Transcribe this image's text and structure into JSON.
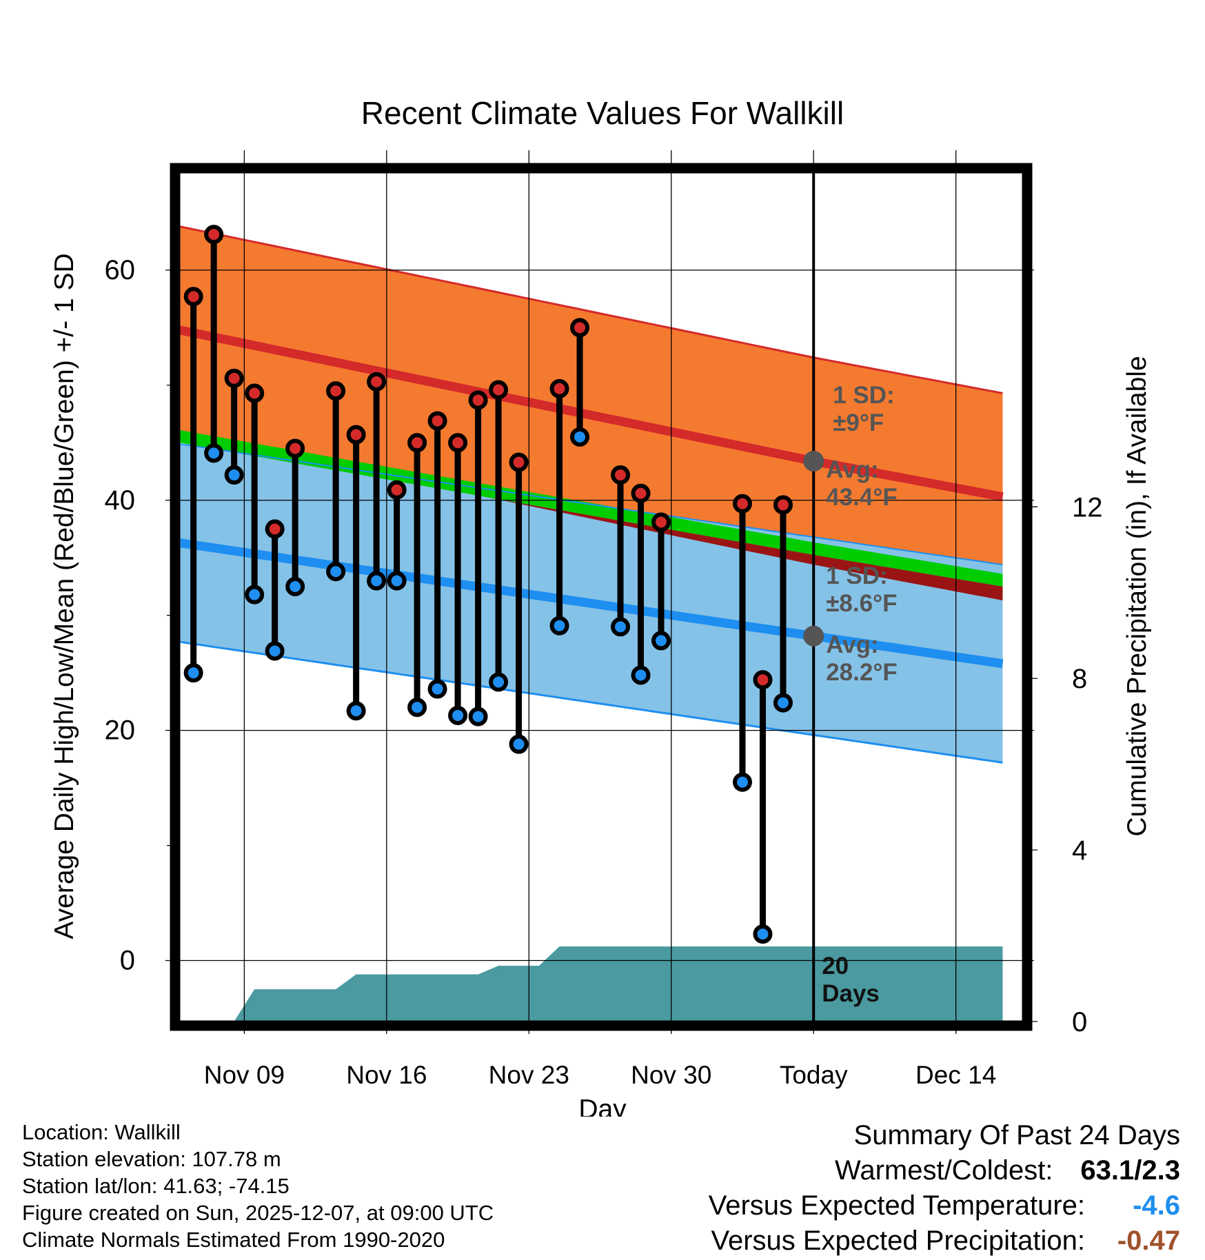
{
  "title": "Recent Climate Values For Wallkill",
  "colors": {
    "high_band": "#f47a30",
    "high_line": "#d42a2a",
    "low_band": "#85c2e7",
    "low_line": "#1e8ef0",
    "mean_band": "#00cc00",
    "mean_dark": "#9b1414",
    "precip": "#4a9aa0",
    "high_dot": "#d42a2a",
    "low_dot": "#1e8ef0",
    "annot": "#555555",
    "temp_anomaly": "#1e8ef0",
    "precip_anomaly": "#a0522d"
  },
  "chart_data": {
    "type": "range-dot",
    "title": "Recent Climate Values For Wallkill",
    "xlabel": "Day",
    "ylabel_left": "Average Daily High/Low/Mean (Red/Blue/Green) +/- 1 SD",
    "ylabel_right": "Cumulative Precipitation (in), If Available",
    "x_start": "Nov 06",
    "x_range_days": [
      0,
      41.5
    ],
    "x_ticks": [
      {
        "day": 3.2,
        "label": "Nov 09"
      },
      {
        "day": 10.2,
        "label": "Nov 16"
      },
      {
        "day": 17.2,
        "label": "Nov 23"
      },
      {
        "day": 24.2,
        "label": "Nov 30"
      },
      {
        "day": 31.2,
        "label": "Today"
      },
      {
        "day": 38.2,
        "label": "Dec 14"
      }
    ],
    "ylim": [
      -5.3,
      68.5
    ],
    "y_ticks": [
      0,
      20,
      40,
      60
    ],
    "y2lim": [
      0,
      19.8
    ],
    "y2_ticks": [
      0,
      4,
      8,
      12
    ],
    "today_day": 31.2,
    "normals": {
      "days": [
        0,
        31.2,
        40.5
      ],
      "high_avg": [
        54.8,
        43.4,
        40.3
      ],
      "high_sd": 9.0,
      "low_avg": [
        36.3,
        28.2,
        25.8
      ],
      "low_sd": 8.6
    },
    "observations": [
      {
        "day": 0.7,
        "high": 57.7,
        "low": 25.0
      },
      {
        "day": 1.7,
        "high": 63.1,
        "low": 44.1
      },
      {
        "day": 2.7,
        "high": 50.6,
        "low": 42.2
      },
      {
        "day": 3.7,
        "high": 49.3,
        "low": 31.8
      },
      {
        "day": 4.7,
        "high": 37.5,
        "low": 26.9
      },
      {
        "day": 5.7,
        "high": 44.5,
        "low": 32.5
      },
      {
        "day": 7.7,
        "high": 49.5,
        "low": 33.8
      },
      {
        "day": 8.7,
        "high": 45.7,
        "low": 21.7
      },
      {
        "day": 9.7,
        "high": 50.3,
        "low": 33.0
      },
      {
        "day": 10.7,
        "high": 40.9,
        "low": 33.0
      },
      {
        "day": 11.7,
        "high": 45.0,
        "low": 22.0
      },
      {
        "day": 12.7,
        "high": 46.9,
        "low": 23.6
      },
      {
        "day": 13.7,
        "high": 45.0,
        "low": 21.3
      },
      {
        "day": 14.7,
        "high": 48.7,
        "low": 21.2
      },
      {
        "day": 15.7,
        "high": 49.6,
        "low": 24.2
      },
      {
        "day": 16.7,
        "high": 43.3,
        "low": 18.8
      },
      {
        "day": 18.7,
        "high": 49.7,
        "low": 29.1
      },
      {
        "day": 19.7,
        "high": 55.0,
        "low": 45.5
      },
      {
        "day": 21.7,
        "high": 42.2,
        "low": 29.0
      },
      {
        "day": 22.7,
        "high": 40.6,
        "low": 24.8
      },
      {
        "day": 23.7,
        "high": 38.1,
        "low": 27.8
      },
      {
        "day": 27.7,
        "high": 39.7,
        "low": 15.5
      },
      {
        "day": 28.7,
        "high": 24.4,
        "low": 2.3
      },
      {
        "day": 29.7,
        "high": 39.6,
        "low": 22.4
      }
    ],
    "precip_cumulative": [
      {
        "day": 0,
        "value": 0.0
      },
      {
        "day": 2.7,
        "value": 0.0
      },
      {
        "day": 3.7,
        "value": 0.75
      },
      {
        "day": 7.7,
        "value": 0.75
      },
      {
        "day": 8.7,
        "value": 1.1
      },
      {
        "day": 14.7,
        "value": 1.1
      },
      {
        "day": 15.7,
        "value": 1.3
      },
      {
        "day": 17.7,
        "value": 1.3
      },
      {
        "day": 18.7,
        "value": 1.75
      },
      {
        "day": 40.5,
        "value": 1.75
      }
    ],
    "annotations": {
      "high_sd_title": "1 SD:",
      "high_sd_value": "±9°F",
      "high_avg_title": "Avg:",
      "high_avg_value": "43.4°F",
      "low_sd_title": "1 SD:",
      "low_sd_value": "±8.6°F",
      "low_avg_title": "Avg:",
      "low_avg_value": "28.2°F",
      "days_count": "20",
      "days_label": "Days"
    }
  },
  "station_info": [
    "Location: Wallkill",
    "Station elevation: 107.78 m",
    "Station lat/lon: 41.63; -74.15",
    "Figure created on Sun, 2025-12-07, at 09:00 UTC",
    "Climate Normals Estimated From 1990-2020"
  ],
  "summary": {
    "title": "Summary Of Past 24 Days",
    "warm_cold_label": "Warmest/Coldest:",
    "warm_cold_value": "63.1/2.3",
    "temp_label": "Versus Expected Temperature:",
    "temp_value": "-4.6",
    "precip_label": "Versus Expected Precipitation:",
    "precip_value": "-0.47"
  }
}
